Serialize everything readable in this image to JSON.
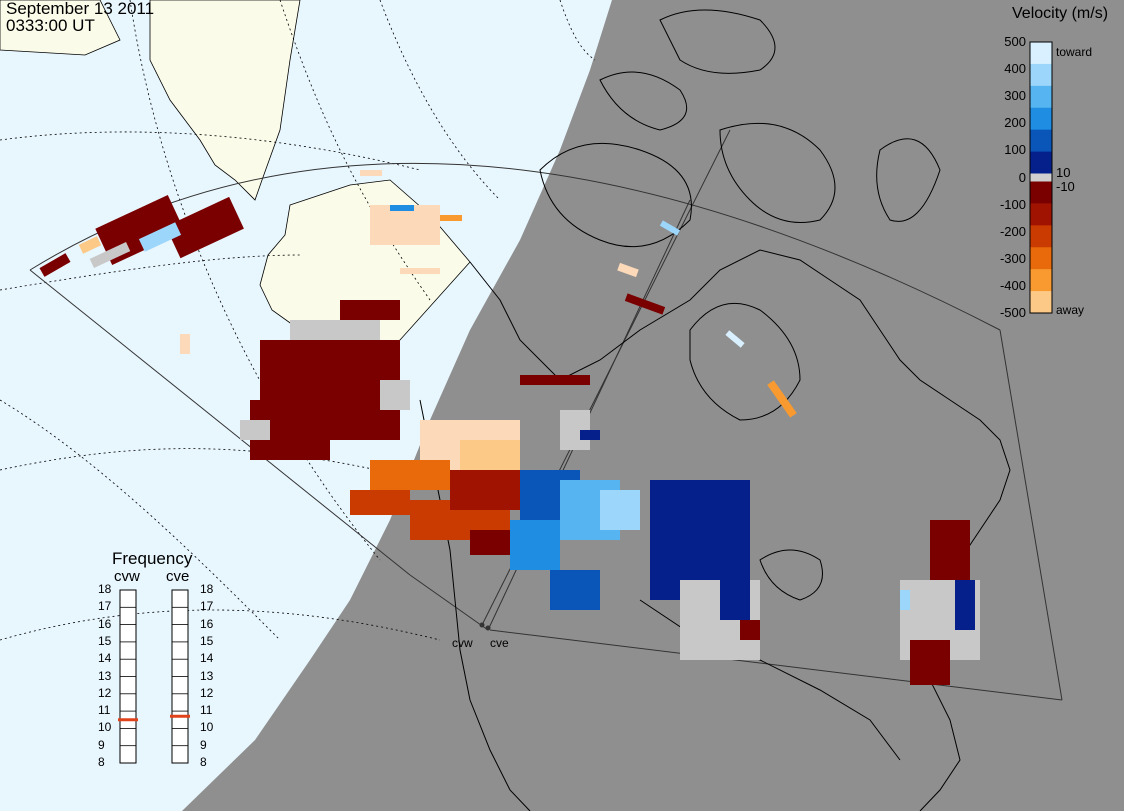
{
  "header": {
    "date": "September 13 2011",
    "time": "0333:00 UT"
  },
  "velocity_scale": {
    "title": "Velocity (m/s)",
    "labels": [
      "500",
      "400",
      "300",
      "200",
      "100",
      "0",
      "-100",
      "-200",
      "-300",
      "-400",
      "-500"
    ],
    "extra_labels": [
      "10",
      "-10"
    ],
    "toward_label": "toward",
    "away_label": "away",
    "colors": {
      "toward": [
        "#d8f0ff",
        "#9cd6fb",
        "#56b4f0",
        "#1e8de2",
        "#0a56b8",
        "#05208a"
      ],
      "away": [
        "#7a0000",
        "#a01300",
        "#c93b00",
        "#e86a0a",
        "#f89a30",
        "#fcc987"
      ]
    }
  },
  "frequency_panel": {
    "title": "Frequency",
    "radars": [
      {
        "code": "cvw",
        "frequency_mhz": 10.5
      },
      {
        "code": "cve",
        "frequency_mhz": 10.7
      }
    ],
    "ticks": [
      "18",
      "17",
      "16",
      "15",
      "14",
      "13",
      "12",
      "11",
      "10",
      "9",
      "8"
    ],
    "indicator_color": "#e0421a"
  },
  "stations": [
    {
      "code": "cvw"
    },
    {
      "code": "cve"
    }
  ],
  "map_colors": {
    "ocean_day": "#e8f6fe",
    "land_day": "#fbfbe9",
    "night": "#8f8f8f",
    "ground_scatter": "#c8c8c8"
  }
}
